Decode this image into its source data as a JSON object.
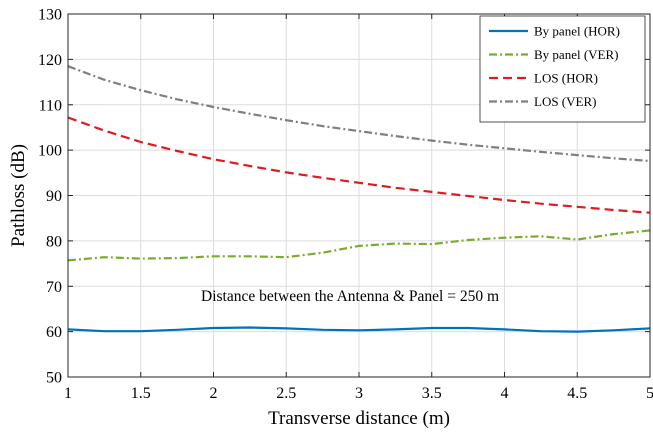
{
  "chart_data": {
    "type": "line",
    "title": "",
    "xlabel": "Transverse distance (m)",
    "ylabel": "Pathloss (dB)",
    "xlim": [
      1,
      5
    ],
    "ylim": [
      50,
      130
    ],
    "xticks": [
      1,
      1.5,
      2,
      2.5,
      3,
      3.5,
      4,
      4.5,
      5
    ],
    "yticks": [
      50,
      60,
      70,
      80,
      90,
      100,
      110,
      120,
      130
    ],
    "xtick_labels": [
      "1",
      "1.5",
      "2",
      "2.5",
      "3",
      "3.5",
      "4",
      "4.5",
      "5"
    ],
    "ytick_labels": [
      "50",
      "60",
      "70",
      "80",
      "90",
      "100",
      "110",
      "120",
      "130"
    ],
    "grid": true,
    "legend_position": "top-right",
    "annotation": "Distance between the Antenna & Panel = 250 m",
    "x": [
      1,
      1.25,
      1.5,
      1.75,
      2,
      2.25,
      2.5,
      2.75,
      3,
      3.25,
      3.5,
      3.75,
      4,
      4.25,
      4.5,
      4.75,
      5
    ],
    "series": [
      {
        "name": "By panel (HOR)",
        "color": "#0072BD",
        "dash": "solid",
        "values": [
          60.5,
          60.1,
          60.1,
          60.4,
          60.8,
          60.9,
          60.7,
          60.4,
          60.3,
          60.5,
          60.8,
          60.8,
          60.5,
          60.1,
          60.0,
          60.3,
          60.7
        ]
      },
      {
        "name": "By panel (VER)",
        "color": "#77AC30",
        "dash": "dashdot",
        "values": [
          75.7,
          76.4,
          76.1,
          76.2,
          76.6,
          76.6,
          76.4,
          77.4,
          78.9,
          79.4,
          79.3,
          80.2,
          80.7,
          81.0,
          80.3,
          81.5,
          82.3
        ]
      },
      {
        "name": "LOS (HOR)",
        "color": "#E31A1C",
        "dash": "dashed",
        "values": [
          107.2,
          104.3,
          101.8,
          99.8,
          98.0,
          96.5,
          95.1,
          93.9,
          92.8,
          91.7,
          90.8,
          89.9,
          89.0,
          88.2,
          87.5,
          86.8,
          86.2
        ]
      },
      {
        "name": "LOS (VER)",
        "color": "#7F7F7F",
        "dash": "dashdot",
        "values": [
          118.5,
          115.5,
          113.2,
          111.2,
          109.5,
          108.0,
          106.6,
          105.3,
          104.2,
          103.1,
          102.1,
          101.2,
          100.4,
          99.6,
          98.9,
          98.2,
          97.6
        ]
      }
    ]
  }
}
